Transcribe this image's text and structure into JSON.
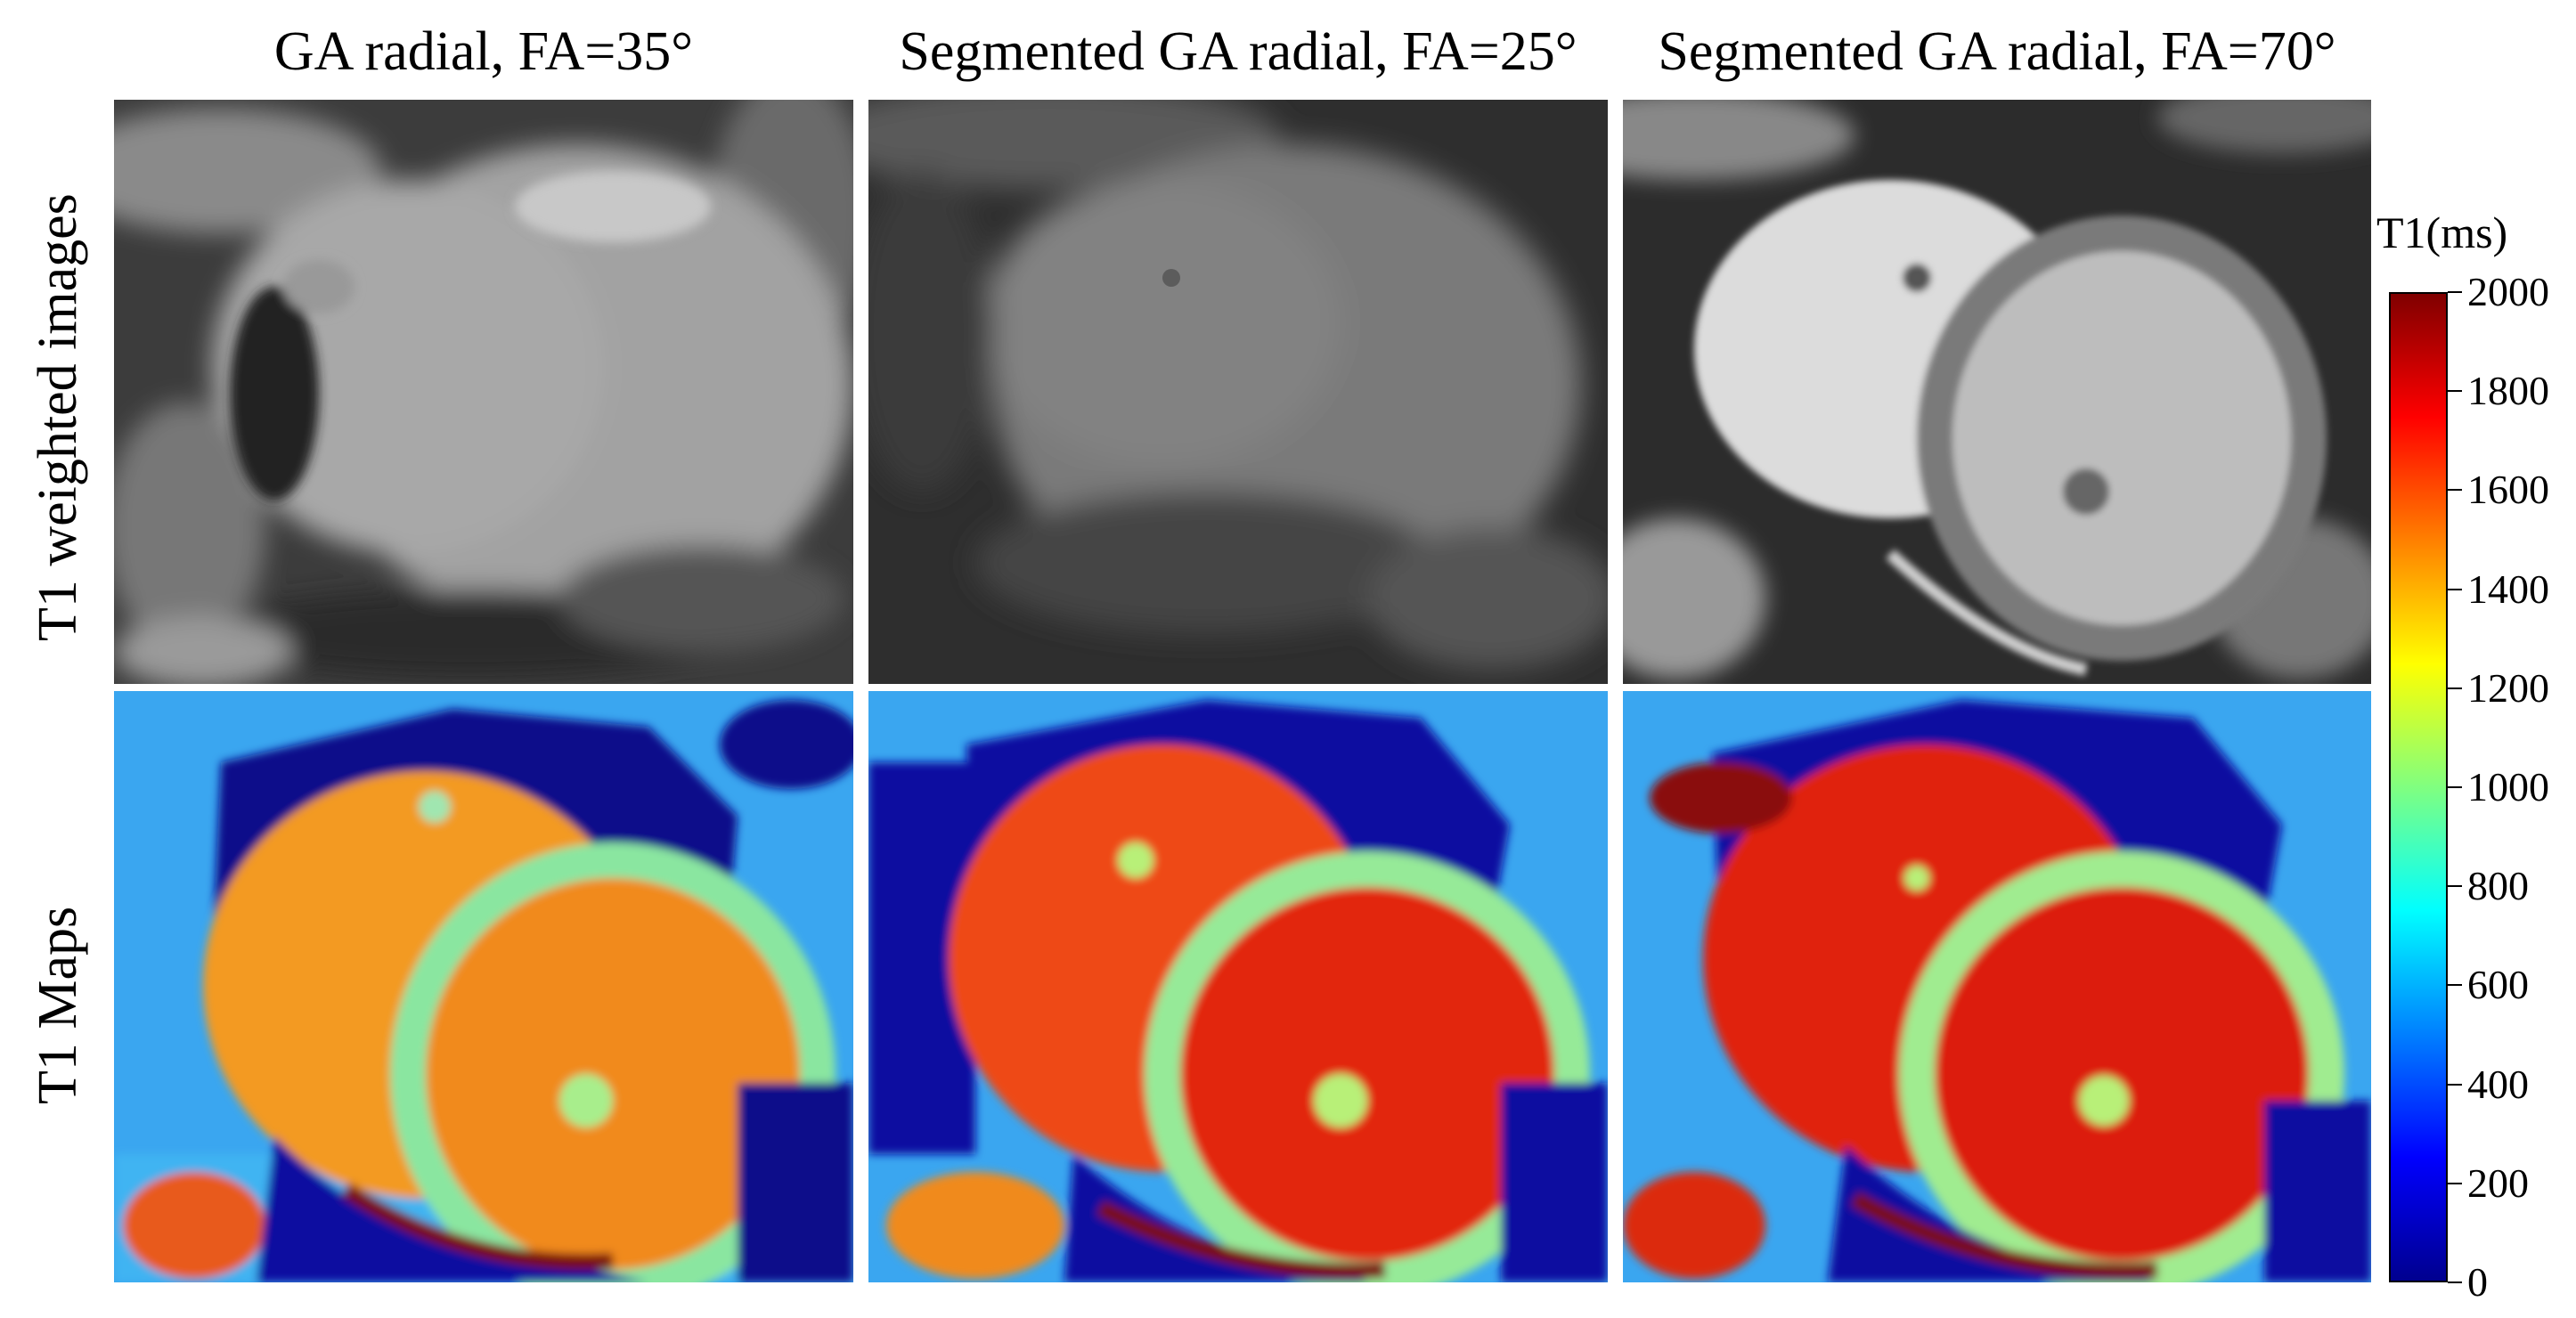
{
  "columns": [
    {
      "title": "GA radial, FA=35°"
    },
    {
      "title": "Segmented GA radial, FA=25°"
    },
    {
      "title": "Segmented GA radial, FA=70°"
    }
  ],
  "rows": [
    {
      "label": "T1 weighted images"
    },
    {
      "label": "T1 Maps"
    }
  ],
  "colorbar": {
    "title": "T1(ms)",
    "colormap": "jet",
    "range": [
      0,
      2000
    ],
    "ticks": [
      "0",
      "200",
      "400",
      "600",
      "800",
      "1000",
      "1200",
      "1400",
      "1600",
      "1800",
      "2000"
    ]
  }
}
